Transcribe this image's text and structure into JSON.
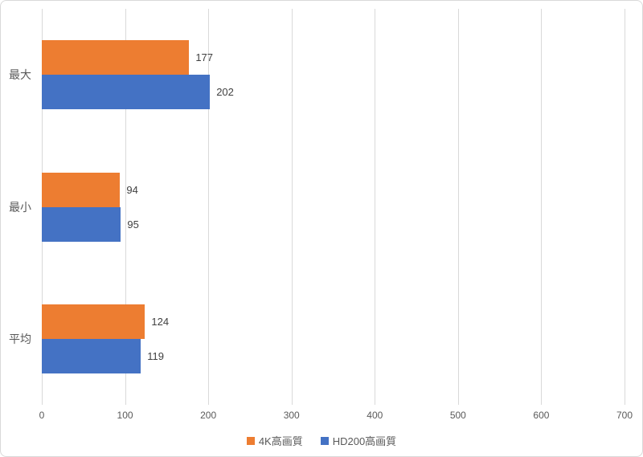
{
  "chart_data": {
    "type": "bar",
    "orientation": "horizontal",
    "title": "",
    "xlabel": "",
    "ylabel": "",
    "categories": [
      "最大",
      "最小",
      "平均"
    ],
    "series": [
      {
        "name": "4K高画質",
        "color": "#ED7D31",
        "values": [
          177,
          94,
          124
        ]
      },
      {
        "name": "HD200高画質",
        "color": "#4472C4",
        "values": [
          202,
          95,
          119
        ]
      }
    ],
    "xlim": [
      0,
      700
    ],
    "x_ticks": [
      0,
      100,
      200,
      300,
      400,
      500,
      600,
      700
    ],
    "grid": "vertical",
    "gridline_color": "#D9D9D9",
    "data_labels": true,
    "data_label_color": "#404040",
    "axis_label_color": "#595959",
    "legend_position": "bottom"
  }
}
